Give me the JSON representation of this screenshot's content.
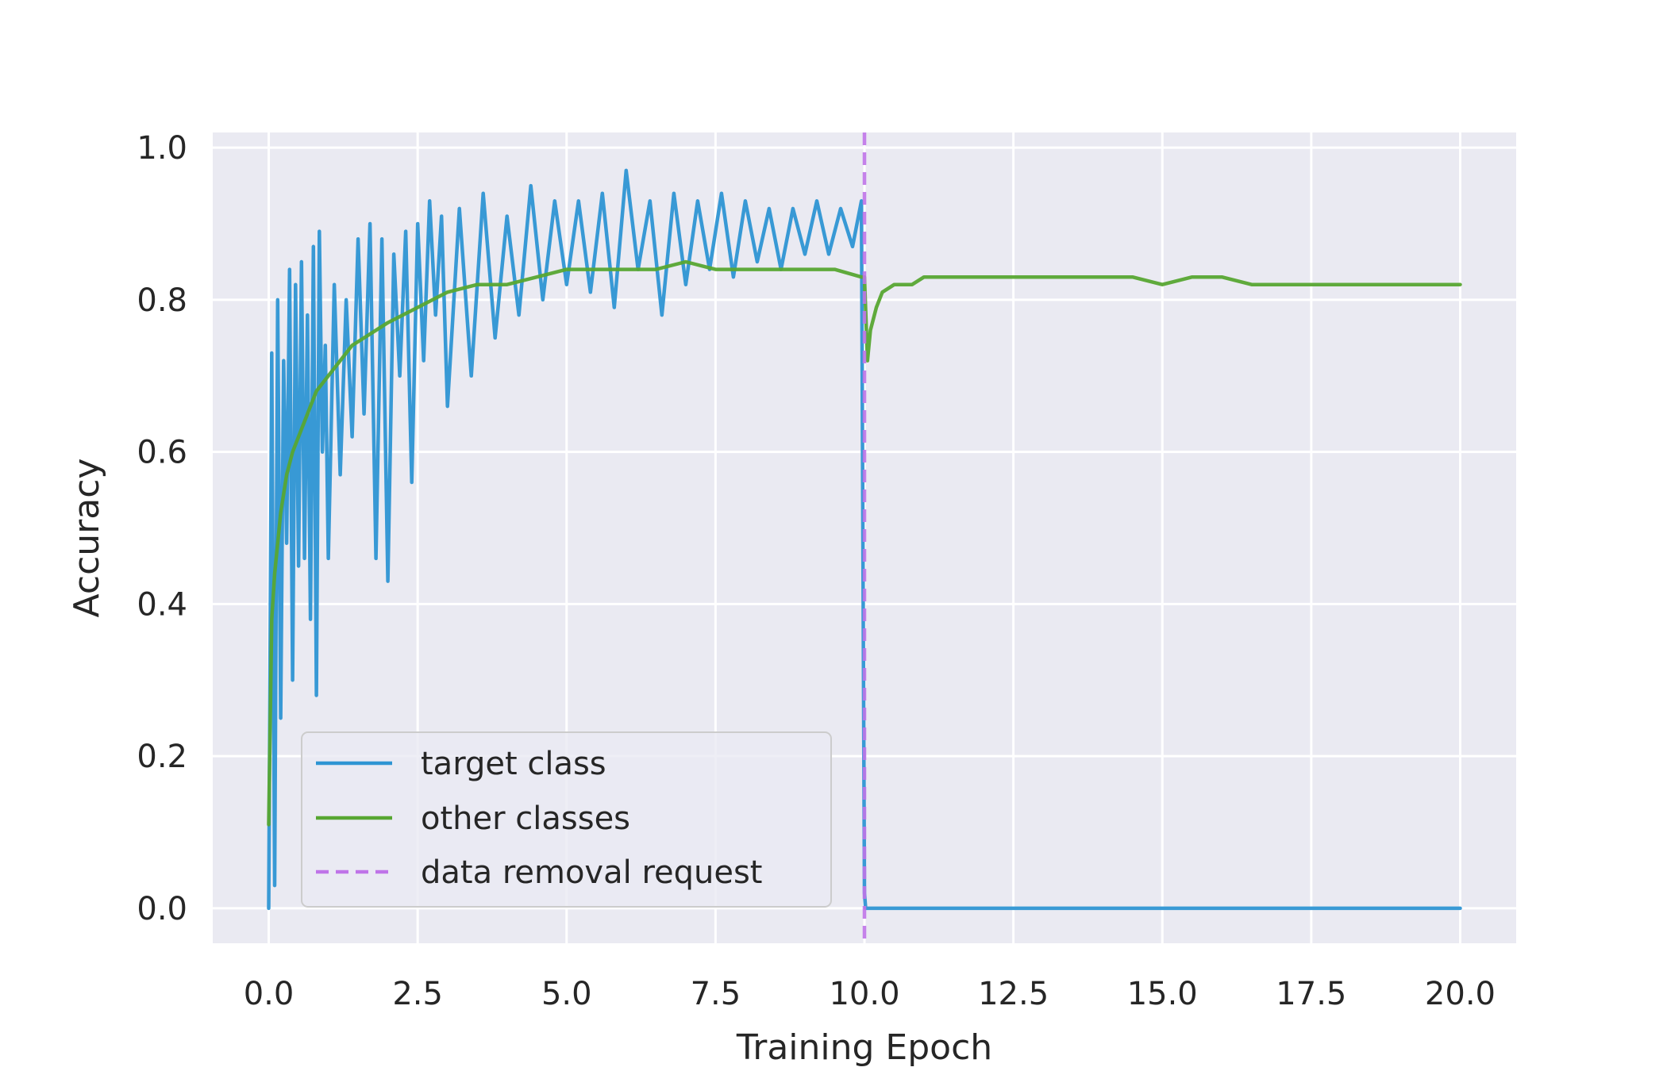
{
  "chart_data": {
    "type": "line",
    "title": "",
    "xlabel": "Training Epoch",
    "ylabel": "Accuracy",
    "xlim": [
      -0.94,
      20.94
    ],
    "ylim": [
      -0.046,
      1.02
    ],
    "xticks": [
      0.0,
      2.5,
      5.0,
      7.5,
      10.0,
      12.5,
      15.0,
      17.5,
      20.0
    ],
    "xtick_labels": [
      "0.0",
      "2.5",
      "5.0",
      "7.5",
      "10.0",
      "12.5",
      "15.0",
      "17.5",
      "20.0"
    ],
    "yticks": [
      0.0,
      0.2,
      0.4,
      0.6,
      0.8,
      1.0
    ],
    "ytick_labels": [
      "0.0",
      "0.2",
      "0.4",
      "0.6",
      "0.8",
      "1.0"
    ],
    "grid": true,
    "legend_position": "lower-left",
    "background_color": "#eaeaf2",
    "series": [
      {
        "name": "target class",
        "color": "#2e95d3",
        "x": [
          0.0,
          0.05,
          0.1,
          0.15,
          0.2,
          0.25,
          0.3,
          0.35,
          0.4,
          0.45,
          0.5,
          0.55,
          0.6,
          0.65,
          0.7,
          0.75,
          0.8,
          0.85,
          0.9,
          0.95,
          1.0,
          1.1,
          1.2,
          1.3,
          1.4,
          1.5,
          1.6,
          1.7,
          1.8,
          1.9,
          2.0,
          2.1,
          2.2,
          2.3,
          2.4,
          2.5,
          2.6,
          2.7,
          2.8,
          2.9,
          3.0,
          3.2,
          3.4,
          3.6,
          3.8,
          4.0,
          4.2,
          4.4,
          4.6,
          4.8,
          5.0,
          5.2,
          5.4,
          5.6,
          5.8,
          6.0,
          6.2,
          6.4,
          6.6,
          6.8,
          7.0,
          7.2,
          7.4,
          7.6,
          7.8,
          8.0,
          8.2,
          8.4,
          8.6,
          8.8,
          9.0,
          9.2,
          9.4,
          9.6,
          9.8,
          9.95,
          10.0,
          10.02,
          12.0,
          14.0,
          16.0,
          18.0,
          20.0
        ],
        "y": [
          0.0,
          0.73,
          0.03,
          0.8,
          0.25,
          0.72,
          0.48,
          0.84,
          0.3,
          0.82,
          0.45,
          0.85,
          0.46,
          0.78,
          0.38,
          0.87,
          0.28,
          0.89,
          0.6,
          0.74,
          0.46,
          0.82,
          0.57,
          0.8,
          0.62,
          0.88,
          0.65,
          0.9,
          0.46,
          0.88,
          0.43,
          0.86,
          0.7,
          0.89,
          0.56,
          0.9,
          0.72,
          0.93,
          0.78,
          0.91,
          0.66,
          0.92,
          0.7,
          0.94,
          0.75,
          0.91,
          0.78,
          0.95,
          0.8,
          0.93,
          0.82,
          0.93,
          0.81,
          0.94,
          0.79,
          0.97,
          0.84,
          0.93,
          0.78,
          0.94,
          0.82,
          0.93,
          0.84,
          0.94,
          0.83,
          0.93,
          0.85,
          0.92,
          0.84,
          0.92,
          0.86,
          0.93,
          0.86,
          0.92,
          0.87,
          0.93,
          0.02,
          0.0,
          0.0,
          0.0,
          0.0,
          0.0,
          0.0
        ]
      },
      {
        "name": "other classes",
        "color": "#57a631",
        "x": [
          0.0,
          0.05,
          0.1,
          0.2,
          0.3,
          0.4,
          0.5,
          0.6,
          0.7,
          0.8,
          0.9,
          1.0,
          1.2,
          1.4,
          1.6,
          1.8,
          2.0,
          2.25,
          2.5,
          2.75,
          3.0,
          3.5,
          4.0,
          4.5,
          5.0,
          5.5,
          6.0,
          6.5,
          7.0,
          7.5,
          8.0,
          8.5,
          9.0,
          9.5,
          9.95,
          10.0,
          10.05,
          10.1,
          10.2,
          10.3,
          10.5,
          10.8,
          11.0,
          11.5,
          12.0,
          12.5,
          13.0,
          13.5,
          14.0,
          14.5,
          15.0,
          15.5,
          16.0,
          16.5,
          17.0,
          17.5,
          18.0,
          18.5,
          19.0,
          19.5,
          20.0
        ],
        "y": [
          0.11,
          0.38,
          0.44,
          0.52,
          0.57,
          0.6,
          0.62,
          0.64,
          0.66,
          0.68,
          0.69,
          0.7,
          0.72,
          0.74,
          0.75,
          0.76,
          0.77,
          0.78,
          0.79,
          0.8,
          0.81,
          0.82,
          0.82,
          0.83,
          0.84,
          0.84,
          0.84,
          0.84,
          0.85,
          0.84,
          0.84,
          0.84,
          0.84,
          0.84,
          0.83,
          0.83,
          0.72,
          0.76,
          0.79,
          0.81,
          0.82,
          0.82,
          0.83,
          0.83,
          0.83,
          0.83,
          0.83,
          0.83,
          0.83,
          0.83,
          0.82,
          0.83,
          0.83,
          0.82,
          0.82,
          0.82,
          0.82,
          0.82,
          0.82,
          0.82,
          0.82
        ]
      }
    ],
    "vline": {
      "name": "data removal request",
      "x": 10.0,
      "color": "#bf74e8",
      "style": "dashed"
    }
  }
}
